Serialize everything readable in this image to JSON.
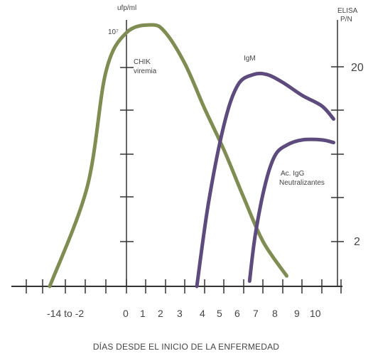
{
  "chart_data": {
    "type": "line",
    "xlabel": "DÍAS DESDE EL INICIO DE LA ENFERMEDAD",
    "x_ticks": [
      "-14 to -2",
      "0",
      "1",
      "2",
      "3",
      "4",
      "5",
      "6",
      "7",
      "8",
      "9",
      "10"
    ],
    "left_axis": {
      "unit_label": "ufp/ml",
      "top_tick_label": "10⁷"
    },
    "right_axis": {
      "title_line1": "ELISA",
      "title_line2": "P/N",
      "ticks": [
        "20",
        "2"
      ]
    },
    "series": [
      {
        "name_line1": "CHIK",
        "name_line2": "viremia",
        "color": "#7f8c52",
        "points": [
          [
            -14,
            0.0
          ],
          [
            -6,
            0.38
          ],
          [
            -2,
            0.82
          ],
          [
            0,
            0.97
          ],
          [
            1.3,
            1.0
          ],
          [
            2,
            0.97
          ],
          [
            3,
            0.85
          ],
          [
            4,
            0.68
          ],
          [
            5,
            0.52
          ],
          [
            6,
            0.34
          ],
          [
            7,
            0.17
          ],
          [
            8.2,
            0.04
          ]
        ]
      },
      {
        "name": "IgM",
        "color": "#5d4b7d",
        "points": [
          [
            3.6,
            0.0
          ],
          [
            4.2,
            0.32
          ],
          [
            5,
            0.62
          ],
          [
            5.7,
            0.77
          ],
          [
            6.5,
            0.81
          ],
          [
            7.2,
            0.81
          ],
          [
            8,
            0.78
          ],
          [
            9,
            0.73
          ],
          [
            10,
            0.69
          ],
          [
            10.6,
            0.64
          ]
        ]
      },
      {
        "name_line1": "Ac. IgG",
        "name_line2": "Neutralizantes",
        "color": "#5d4b7d",
        "points": [
          [
            6.3,
            0.02
          ],
          [
            6.6,
            0.2
          ],
          [
            7.1,
            0.39
          ],
          [
            7.6,
            0.5
          ],
          [
            8.2,
            0.54
          ],
          [
            9,
            0.56
          ],
          [
            10,
            0.56
          ],
          [
            10.6,
            0.55
          ]
        ]
      }
    ]
  }
}
